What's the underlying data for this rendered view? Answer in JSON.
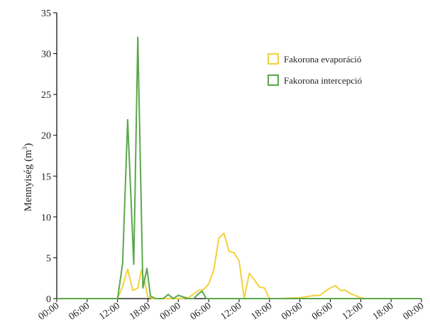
{
  "chart_data": {
    "type": "line",
    "ylabel": "Mennyiség (m",
    "ylabel_sup": "3",
    "ylabel_close": ")",
    "ylim": [
      0,
      35
    ],
    "yticks": [
      0,
      5,
      10,
      15,
      20,
      25,
      30,
      35
    ],
    "xlim": [
      0,
      72
    ],
    "xticks": [
      {
        "x": 0,
        "label": "00:00"
      },
      {
        "x": 6,
        "label": "06:00"
      },
      {
        "x": 12,
        "label": "12:00"
      },
      {
        "x": 18,
        "label": "18:00"
      },
      {
        "x": 24,
        "label": "00:00"
      },
      {
        "x": 30,
        "label": "06:00"
      },
      {
        "x": 36,
        "label": "12:00"
      },
      {
        "x": 42,
        "label": "18:00"
      },
      {
        "x": 48,
        "label": "00:00"
      },
      {
        "x": 54,
        "label": "06:00"
      },
      {
        "x": 60,
        "label": "12:00"
      },
      {
        "x": 66,
        "label": "18:00"
      },
      {
        "x": 72,
        "label": "00:00"
      }
    ],
    "grid": false,
    "legend_position": "top-right",
    "series": [
      {
        "name": "Fakorona evaporáció",
        "color": "#f2d23a",
        "points": [
          [
            0,
            0
          ],
          [
            12,
            0
          ],
          [
            13,
            1.5
          ],
          [
            14,
            3.6
          ],
          [
            15,
            1.0
          ],
          [
            16,
            1.3
          ],
          [
            16.7,
            3.5
          ],
          [
            17.3,
            2.2
          ],
          [
            18,
            0.2
          ],
          [
            19,
            0
          ],
          [
            22,
            0
          ],
          [
            24,
            0
          ],
          [
            26,
            0.1
          ],
          [
            28,
            1.0
          ],
          [
            29,
            1.1
          ],
          [
            30,
            1.8
          ],
          [
            31,
            3.5
          ],
          [
            32,
            7.4
          ],
          [
            33,
            8.0
          ],
          [
            34,
            5.8
          ],
          [
            35,
            5.6
          ],
          [
            36,
            4.6
          ],
          [
            37,
            0
          ],
          [
            38,
            3.1
          ],
          [
            39,
            2.3
          ],
          [
            40,
            1.4
          ],
          [
            41,
            1.3
          ],
          [
            42,
            0
          ],
          [
            44,
            0
          ],
          [
            48,
            0.1
          ],
          [
            50,
            0.3
          ],
          [
            51,
            0.4
          ],
          [
            52,
            0.4
          ],
          [
            53,
            0.9
          ],
          [
            54,
            1.3
          ],
          [
            55,
            1.6
          ],
          [
            56,
            1.0
          ],
          [
            57,
            1.0
          ],
          [
            58,
            0.6
          ],
          [
            60,
            0.1
          ],
          [
            61,
            0
          ],
          [
            72,
            0
          ]
        ]
      },
      {
        "name": "Fakorona intercepció",
        "color": "#5aa84a",
        "points": [
          [
            0,
            0
          ],
          [
            12,
            0
          ],
          [
            13,
            4.3
          ],
          [
            14,
            21.9
          ],
          [
            15.2,
            4.2
          ],
          [
            16,
            32.0
          ],
          [
            17,
            1.3
          ],
          [
            17.8,
            3.7
          ],
          [
            18.5,
            0.3
          ],
          [
            19.5,
            0
          ],
          [
            21,
            0
          ],
          [
            22,
            0.5
          ],
          [
            23,
            0
          ],
          [
            24,
            0.4
          ],
          [
            25,
            0.2
          ],
          [
            26,
            0
          ],
          [
            27,
            0
          ],
          [
            28,
            0.6
          ],
          [
            28.7,
            0.9
          ],
          [
            29.5,
            0
          ],
          [
            72,
            0
          ]
        ]
      }
    ]
  }
}
